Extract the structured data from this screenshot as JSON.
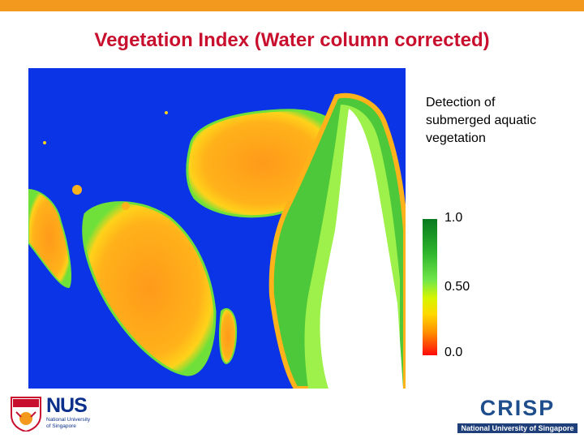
{
  "slide": {
    "title": "Vegetation Index (Water column corrected)"
  },
  "legend": {
    "caption_lines": [
      "Detection of",
      "submerged aquatic",
      "vegetation"
    ],
    "ticks": [
      "1.0",
      "0.50",
      "0.0"
    ],
    "colors": {
      "high": "#087a1e",
      "mid": "#71e64a",
      "low": "#ff0a0a"
    }
  },
  "map": {
    "water_color": "#0a34e6",
    "land_color": "#ffffff"
  },
  "logos": {
    "nus": {
      "word": "NUS",
      "sub_line1": "National University",
      "sub_line2": "of Singapore"
    },
    "crisp": {
      "word": "CRISP",
      "sub": "National University of Singapore"
    }
  }
}
